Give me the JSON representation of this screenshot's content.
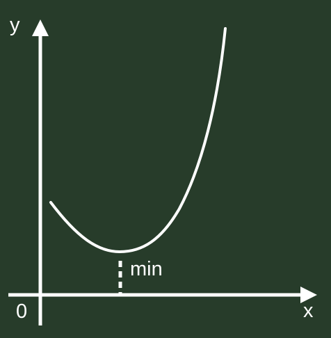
{
  "diagram": {
    "y_axis_label": "y",
    "x_axis_label": "x",
    "origin_label": "0",
    "minimum_label": "min"
  },
  "colors": {
    "background": "#273c2a",
    "foreground": "#ffffff"
  }
}
